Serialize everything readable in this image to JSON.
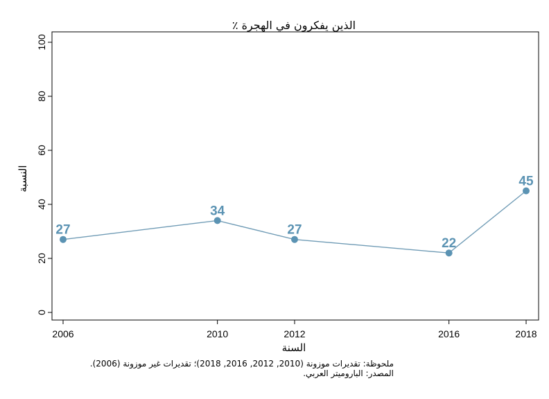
{
  "chart_data": {
    "type": "line",
    "title": "٪ الذين يفكرون في الهجرة",
    "xlabel": "السنة",
    "ylabel": "النسبة",
    "x": [
      2006,
      2010,
      2012,
      2016,
      2018
    ],
    "x_ticks": [
      "2006",
      "2010",
      "2012",
      "2016",
      "2018"
    ],
    "y_ticks": [
      "0",
      "20",
      "40",
      "60",
      "80",
      "100"
    ],
    "ylim": [
      0,
      100
    ],
    "series": [
      {
        "values": [
          27,
          34,
          27,
          22,
          45
        ],
        "labels": [
          "27",
          "34",
          "27",
          "22",
          "45"
        ]
      }
    ],
    "grid": false,
    "colors": {
      "line": "#6f9bb5",
      "marker": "#5b93b3",
      "label": "#5b93b3"
    }
  },
  "notes": {
    "note": "ملحوظة: تقديرات موزونة (2010, 2012, 2016, 2018)؛ تقديرات غير موزونة (2006).",
    "source": "المصدر: الباروميتر العربي."
  }
}
